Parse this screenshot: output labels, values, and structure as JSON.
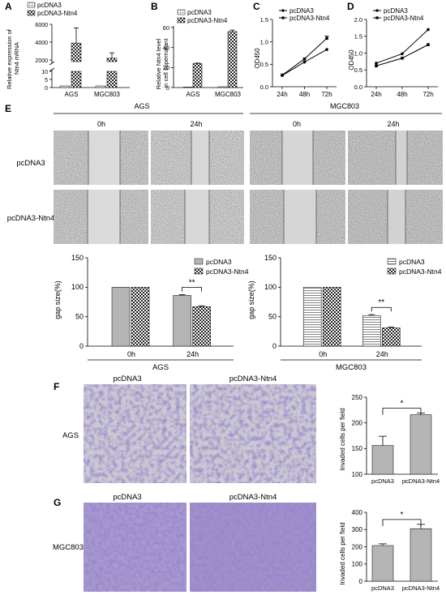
{
  "panels": {
    "A": {
      "letter": "A",
      "legend": [
        "pcDNA3",
        "pcDNA3-Ntn4"
      ],
      "ylabel": "Relative expression of Ntn4 mRNA",
      "ylabel_lines": [
        "Relative expression of",
        "Ntn4 mRNA"
      ],
      "yticks": [
        "0",
        "5",
        "10",
        "2000",
        "4000",
        "6000"
      ],
      "categories": [
        "AGS",
        "MGC803"
      ]
    },
    "B": {
      "letter": "B",
      "legend": [
        "pcDNA3",
        "pcDNA3-Ntn4"
      ],
      "ylabel": "Relative Ntn4 level in cell supernatant",
      "ylabel_lines": [
        "Relative Ntn4 level",
        "in cell supernatant"
      ],
      "yticks": [
        "0",
        "20",
        "40",
        "60"
      ],
      "categories": [
        "AGS",
        "MGC803"
      ]
    },
    "C": {
      "letter": "C",
      "legend": [
        "pcDNA3",
        "pcDNA3-Ntn4"
      ],
      "ylabel": "OD450",
      "yticks": [
        "0.0",
        "0.5",
        "1.0",
        "1.5"
      ],
      "xticks": [
        "24h",
        "48h",
        "72h"
      ]
    },
    "D": {
      "letter": "D",
      "legend": [
        "pcDNA3",
        "pcDNA3-Ntn4"
      ],
      "ylabel": "OD450",
      "yticks": [
        "0.0",
        "0.5",
        "1.0",
        "1.5",
        "2.0"
      ],
      "xticks": [
        "24h",
        "48h",
        "72h"
      ]
    },
    "E": {
      "letter": "E",
      "groups": [
        "AGS",
        "MGC803"
      ],
      "times": [
        "0h",
        "24h",
        "0h",
        "24h"
      ],
      "rows": [
        "pcDNA3",
        "pcDNA3-Ntn4"
      ],
      "charts": [
        {
          "legend": [
            "pcDNA3",
            "pcDNA3-Ntn4"
          ],
          "ylabel": "gap size(%)",
          "yticks": [
            "0",
            "50",
            "100",
            "150"
          ],
          "categories": [
            "0h",
            "24h"
          ],
          "xlabel": "AGS",
          "sig": "**"
        },
        {
          "legend": [
            "pcDNA3",
            "pcDNA3-Ntn4"
          ],
          "ylabel": "gap size(%)",
          "yticks": [
            "0",
            "50",
            "100",
            "150"
          ],
          "categories": [
            "0h",
            "24h"
          ],
          "xlabel": "MGC803",
          "sig": "**"
        }
      ]
    },
    "F": {
      "letter": "F",
      "columns": [
        "pcDNA3",
        "pcDNA3-Ntn4"
      ],
      "row": "AGS",
      "ylabel": "Invaded cells per field",
      "yticks": [
        "100",
        "150",
        "200",
        "250"
      ],
      "categories": [
        "pcDNA3",
        "pcDNA3-Ntn4"
      ],
      "sig": "*"
    },
    "G": {
      "letter": "G",
      "columns": [
        "pcDNA3",
        "pcDNA3-Ntn4"
      ],
      "row": "MGC803",
      "ylabel": "Invaded cells per field",
      "yticks": [
        "0",
        "100",
        "200",
        "300",
        "400"
      ],
      "categories": [
        "pcDNA3",
        "pcDNA3-Ntn4"
      ],
      "sig": "*"
    }
  },
  "chart_data": [
    {
      "id": "A",
      "type": "bar",
      "categories": [
        "AGS",
        "MGC803"
      ],
      "series": [
        {
          "name": "pcDNA3",
          "values": [
            1,
            1
          ],
          "errors": [
            0,
            0
          ]
        },
        {
          "name": "pcDNA3-Ntn4",
          "values": [
            3900,
            2200
          ],
          "errors": [
            1700,
            600
          ]
        }
      ],
      "ylabel": "Relative expression of Ntn4 mRNA",
      "broken_axis": true
    },
    {
      "id": "B",
      "type": "bar",
      "categories": [
        "AGS",
        "MGC803"
      ],
      "series": [
        {
          "name": "pcDNA3",
          "values": [
            0.5,
            0.8
          ],
          "errors": [
            0,
            0
          ]
        },
        {
          "name": "pcDNA3-Ntn4",
          "values": [
            24,
            56
          ],
          "errors": [
            0.5,
            1.5
          ]
        }
      ],
      "ylabel": "Relative Ntn4 level in cell supernatant",
      "ylim": [
        0,
        60
      ]
    },
    {
      "id": "C",
      "type": "line",
      "x": [
        "24h",
        "48h",
        "72h"
      ],
      "series": [
        {
          "name": "pcDNA3",
          "values": [
            0.25,
            0.55,
            0.83
          ]
        },
        {
          "name": "pcDNA3-Ntn4",
          "values": [
            0.26,
            0.62,
            1.08
          ]
        }
      ],
      "ylabel": "OD450",
      "ylim": [
        0,
        1.5
      ]
    },
    {
      "id": "D",
      "type": "line",
      "x": [
        "24h",
        "48h",
        "72h"
      ],
      "series": [
        {
          "name": "pcDNA3",
          "values": [
            0.7,
            0.98,
            1.7
          ]
        },
        {
          "name": "pcDNA3-Ntn4",
          "values": [
            0.62,
            0.85,
            1.25
          ]
        }
      ],
      "ylabel": "OD450",
      "ylim": [
        0,
        2.0
      ]
    },
    {
      "id": "E-AGS",
      "type": "bar",
      "categories": [
        "0h",
        "24h"
      ],
      "series": [
        {
          "name": "pcDNA3",
          "values": [
            100,
            86
          ],
          "errors": [
            0,
            1.5
          ]
        },
        {
          "name": "pcDNA3-Ntn4",
          "values": [
            100,
            67
          ],
          "errors": [
            0,
            1.5
          ]
        }
      ],
      "ylabel": "gap size(%)",
      "xlabel": "AGS",
      "ylim": [
        0,
        150
      ]
    },
    {
      "id": "E-MGC803",
      "type": "bar",
      "categories": [
        "0h",
        "24h"
      ],
      "series": [
        {
          "name": "pcDNA3",
          "values": [
            100,
            52
          ],
          "errors": [
            0,
            1.5
          ]
        },
        {
          "name": "pcDNA3-Ntn4",
          "values": [
            100,
            31
          ],
          "errors": [
            0,
            1.5
          ]
        }
      ],
      "ylabel": "gap size(%)",
      "xlabel": "MGC803",
      "ylim": [
        0,
        150
      ]
    },
    {
      "id": "F",
      "type": "bar",
      "categories": [
        "pcDNA3",
        "pcDNA3-Ntn4"
      ],
      "values": [
        156,
        216
      ],
      "errors": [
        18,
        3
      ],
      "ylabel": "Invaded cells per field",
      "ylim": [
        100,
        250
      ]
    },
    {
      "id": "G",
      "type": "bar",
      "categories": [
        "pcDNA3",
        "pcDNA3-Ntn4"
      ],
      "values": [
        207,
        305
      ],
      "errors": [
        10,
        25
      ],
      "ylabel": "Invaded cells per field",
      "ylim": [
        0,
        400
      ]
    }
  ]
}
